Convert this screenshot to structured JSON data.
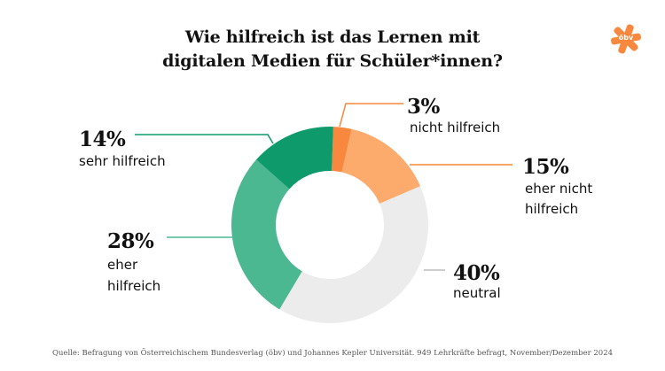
{
  "header": {
    "title_line1": "Wie hilfreich ist das Lernen mit",
    "title_line2": "digitalen Medien für Schüler*innen?",
    "logo_text": "öbv"
  },
  "chart_data": {
    "type": "pie",
    "donut": true,
    "title": "Wie hilfreich ist das Lernen mit digitalen Medien für Schüler*innen?",
    "unit": "%",
    "slices": [
      {
        "key": "nicht",
        "pct": "3%",
        "label": "nicht hilfreich",
        "value": 3,
        "color": "#f7883e"
      },
      {
        "key": "ehernicht",
        "pct": "15%",
        "label_line1": "eher nicht",
        "label_line2": "hilfreich",
        "value": 15,
        "color": "#fdab6c"
      },
      {
        "key": "neutral",
        "pct": "40%",
        "label": "neutral",
        "value": 40,
        "color": "#ececec"
      },
      {
        "key": "eher",
        "pct": "28%",
        "label_line1": "eher",
        "label_line2": "hilfreich",
        "value": 28,
        "color": "#4cb891"
      },
      {
        "key": "sehr",
        "pct": "14%",
        "label": "sehr hilfreich",
        "value": 14,
        "color": "#0e9a6b"
      }
    ]
  },
  "footer": {
    "source": "Quelle: Befragung von Österreichischem Bundesverlag (öbv) und Johannes Kepler Universität. 949 Lehrkräfte befragt, November/Dezember 2024"
  }
}
